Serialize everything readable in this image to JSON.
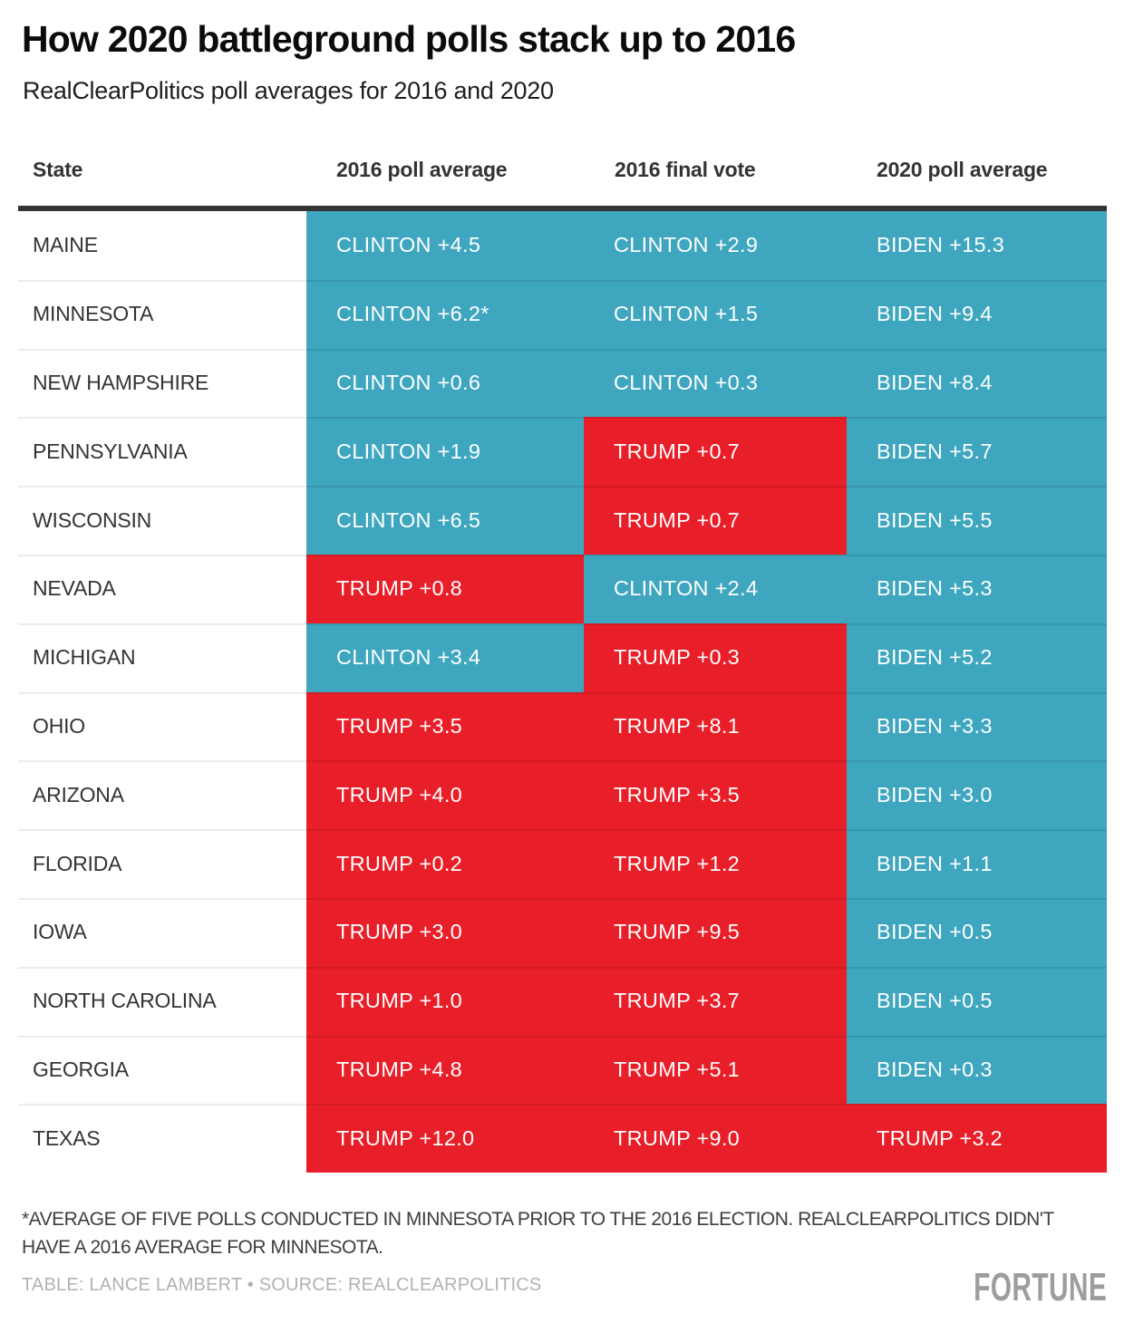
{
  "header": {
    "title": "How 2020 battleground polls stack up to 2016",
    "subtitle": "RealClearPolitics poll averages for 2016 and 2020"
  },
  "colors": {
    "dem_blue": "#3ea6bf",
    "rep_red": "#e81e28",
    "header_rule": "#343434",
    "state_separator": "#ececec",
    "credit_gray": "#b2b2b2",
    "brand_gray": "#9d9d9d"
  },
  "table": {
    "columns": [
      "State",
      "2016 poll average",
      "2016 final vote",
      "2020 poll average"
    ],
    "rows": [
      {
        "state": "MAINE",
        "cells": [
          {
            "text": "CLINTON +4.5",
            "party": "dem"
          },
          {
            "text": "CLINTON +2.9",
            "party": "dem"
          },
          {
            "text": "BIDEN +15.3",
            "party": "dem"
          }
        ]
      },
      {
        "state": "MINNESOTA",
        "cells": [
          {
            "text": "CLINTON +6.2*",
            "party": "dem"
          },
          {
            "text": "CLINTON +1.5",
            "party": "dem"
          },
          {
            "text": "BIDEN +9.4",
            "party": "dem"
          }
        ]
      },
      {
        "state": "NEW HAMPSHIRE",
        "cells": [
          {
            "text": "CLINTON +0.6",
            "party": "dem"
          },
          {
            "text": "CLINTON +0.3",
            "party": "dem"
          },
          {
            "text": "BIDEN +8.4",
            "party": "dem"
          }
        ]
      },
      {
        "state": "PENNSYLVANIA",
        "cells": [
          {
            "text": "CLINTON +1.9",
            "party": "dem"
          },
          {
            "text": "TRUMP +0.7",
            "party": "rep"
          },
          {
            "text": "BIDEN +5.7",
            "party": "dem"
          }
        ]
      },
      {
        "state": "WISCONSIN",
        "cells": [
          {
            "text": "CLINTON +6.5",
            "party": "dem"
          },
          {
            "text": "TRUMP +0.7",
            "party": "rep"
          },
          {
            "text": "BIDEN +5.5",
            "party": "dem"
          }
        ]
      },
      {
        "state": "NEVADA",
        "cells": [
          {
            "text": "TRUMP +0.8",
            "party": "rep"
          },
          {
            "text": "CLINTON +2.4",
            "party": "dem"
          },
          {
            "text": "BIDEN +5.3",
            "party": "dem"
          }
        ]
      },
      {
        "state": "MICHIGAN",
        "cells": [
          {
            "text": "CLINTON +3.4",
            "party": "dem"
          },
          {
            "text": "TRUMP +0.3",
            "party": "rep"
          },
          {
            "text": "BIDEN +5.2",
            "party": "dem"
          }
        ]
      },
      {
        "state": "OHIO",
        "cells": [
          {
            "text": "TRUMP +3.5",
            "party": "rep"
          },
          {
            "text": "TRUMP +8.1",
            "party": "rep"
          },
          {
            "text": "BIDEN +3.3",
            "party": "dem"
          }
        ]
      },
      {
        "state": "ARIZONA",
        "cells": [
          {
            "text": "TRUMP +4.0",
            "party": "rep"
          },
          {
            "text": "TRUMP +3.5",
            "party": "rep"
          },
          {
            "text": "BIDEN +3.0",
            "party": "dem"
          }
        ]
      },
      {
        "state": "FLORIDA",
        "cells": [
          {
            "text": "TRUMP +0.2",
            "party": "rep"
          },
          {
            "text": "TRUMP +1.2",
            "party": "rep"
          },
          {
            "text": "BIDEN +1.1",
            "party": "dem"
          }
        ]
      },
      {
        "state": "IOWA",
        "cells": [
          {
            "text": "TRUMP +3.0",
            "party": "rep"
          },
          {
            "text": "TRUMP +9.5",
            "party": "rep"
          },
          {
            "text": "BIDEN +0.5",
            "party": "dem"
          }
        ]
      },
      {
        "state": "NORTH CAROLINA",
        "cells": [
          {
            "text": "TRUMP +1.0",
            "party": "rep"
          },
          {
            "text": "TRUMP +3.7",
            "party": "rep"
          },
          {
            "text": "BIDEN +0.5",
            "party": "dem"
          }
        ]
      },
      {
        "state": "GEORGIA",
        "cells": [
          {
            "text": "TRUMP +4.8",
            "party": "rep"
          },
          {
            "text": "TRUMP +5.1",
            "party": "rep"
          },
          {
            "text": "BIDEN +0.3",
            "party": "dem"
          }
        ]
      },
      {
        "state": "TEXAS",
        "cells": [
          {
            "text": "TRUMP +12.0",
            "party": "rep"
          },
          {
            "text": "TRUMP +9.0",
            "party": "rep"
          },
          {
            "text": "TRUMP +3.2",
            "party": "rep"
          }
        ]
      }
    ]
  },
  "footnote": "*AVERAGE OF FIVE POLLS CONDUCTED IN MINNESOTA PRIOR TO THE 2016 ELECTION. REALCLEARPOLITICS DIDN'T HAVE A 2016 AVERAGE FOR MINNESOTA.",
  "credit": "TABLE: LANCE LAMBERT • SOURCE: REALCLEARPOLITICS",
  "brand": "FORTUNE",
  "chart_data": {
    "type": "table",
    "title": "How 2020 battleground polls stack up to 2016",
    "subtitle": "RealClearPolitics poll averages for 2016 and 2020",
    "columns": [
      "State",
      "2016 poll average",
      "2016 final vote",
      "2020 poll average"
    ],
    "rows": [
      [
        "MAINE",
        "CLINTON +4.5",
        "CLINTON +2.9",
        "BIDEN +15.3"
      ],
      [
        "MINNESOTA",
        "CLINTON +6.2*",
        "CLINTON +1.5",
        "BIDEN +9.4"
      ],
      [
        "NEW HAMPSHIRE",
        "CLINTON +0.6",
        "CLINTON +0.3",
        "BIDEN +8.4"
      ],
      [
        "PENNSYLVANIA",
        "CLINTON +1.9",
        "TRUMP +0.7",
        "BIDEN +5.7"
      ],
      [
        "WISCONSIN",
        "CLINTON +6.5",
        "TRUMP +0.7",
        "BIDEN +5.5"
      ],
      [
        "NEVADA",
        "TRUMP +0.8",
        "CLINTON +2.4",
        "BIDEN +5.3"
      ],
      [
        "MICHIGAN",
        "CLINTON +3.4",
        "TRUMP +0.3",
        "BIDEN +5.2"
      ],
      [
        "OHIO",
        "TRUMP +3.5",
        "TRUMP +8.1",
        "BIDEN +3.3"
      ],
      [
        "ARIZONA",
        "TRUMP +4.0",
        "TRUMP +3.5",
        "BIDEN +3.0"
      ],
      [
        "FLORIDA",
        "TRUMP +0.2",
        "TRUMP +1.2",
        "BIDEN +1.1"
      ],
      [
        "IOWA",
        "TRUMP +3.0",
        "TRUMP +9.5",
        "BIDEN +0.5"
      ],
      [
        "NORTH CAROLINA",
        "TRUMP +1.0",
        "TRUMP +3.7",
        "BIDEN +0.5"
      ],
      [
        "GEORGIA",
        "TRUMP +4.8",
        "TRUMP +5.1",
        "BIDEN +0.3"
      ],
      [
        "TEXAS",
        "TRUMP +12.0",
        "TRUMP +9.0",
        "TRUMP +3.2"
      ]
    ],
    "cell_party_colors": {
      "dem": "#3ea6bf",
      "rep": "#e81e28"
    },
    "margins_numeric": {
      "positive_means": "Democrat lead, negative means Trump lead",
      "states": [
        "Maine",
        "Minnesota",
        "New Hampshire",
        "Pennsylvania",
        "Wisconsin",
        "Nevada",
        "Michigan",
        "Ohio",
        "Arizona",
        "Florida",
        "Iowa",
        "North Carolina",
        "Georgia",
        "Texas"
      ],
      "poll_2016": [
        4.5,
        6.2,
        0.6,
        1.9,
        6.5,
        -0.8,
        3.4,
        -3.5,
        -4.0,
        -0.2,
        -3.0,
        -1.0,
        -4.8,
        -12.0
      ],
      "final_vote_2016": [
        2.9,
        1.5,
        0.3,
        -0.7,
        -0.7,
        2.4,
        -0.3,
        -8.1,
        -3.5,
        -1.2,
        -9.5,
        -3.7,
        -5.1,
        -9.0
      ],
      "poll_2020": [
        15.3,
        9.4,
        8.4,
        5.7,
        5.5,
        5.3,
        5.2,
        3.3,
        3.0,
        1.1,
        0.5,
        0.5,
        0.3,
        -3.2
      ]
    },
    "footnote": "*AVERAGE OF FIVE POLLS CONDUCTED IN MINNESOTA PRIOR TO THE 2016 ELECTION. REALCLEARPOLITICS DIDN'T HAVE A 2016 AVERAGE FOR MINNESOTA.",
    "credit": "TABLE: LANCE LAMBERT • SOURCE: REALCLEARPOLITICS"
  }
}
